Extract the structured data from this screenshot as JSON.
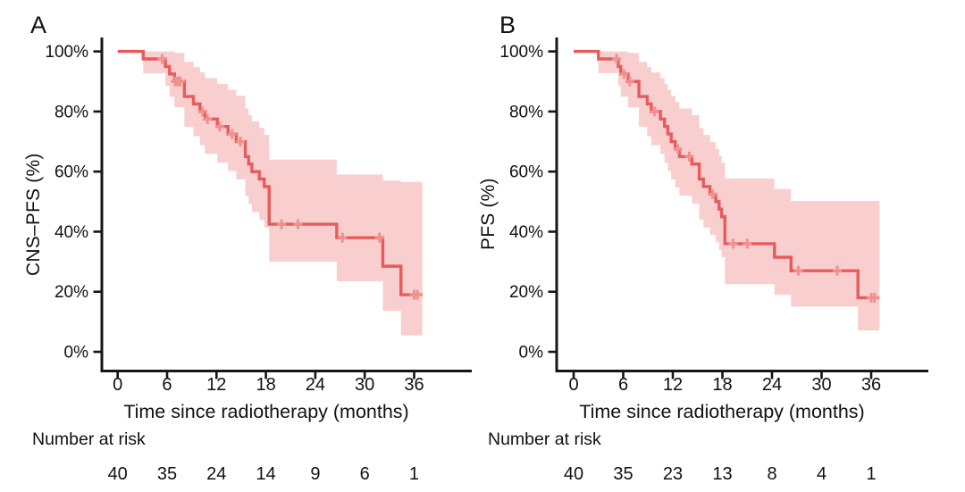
{
  "styles": {
    "background": "#ffffff",
    "text_color": "#111111",
    "axis_color": "#161616",
    "line_color": "#e65b5e",
    "band_color": "#f8cfce",
    "censor_color": "#f0918f"
  },
  "chart_data": [
    {
      "type": "line",
      "subtype": "kaplan_meier_step_with_ci_band",
      "panel_label": "A",
      "series_name": "CNS-PFS",
      "xlabel": "Time since radiotherapy (months)",
      "ylabel": "CNS–PFS (%)",
      "x_ticks": [
        "0",
        "6",
        "12",
        "18",
        "24",
        "30",
        "36"
      ],
      "x_tick_values": [
        0,
        6,
        12,
        18,
        24,
        30,
        36
      ],
      "y_ticks": [
        "0%",
        "20%",
        "40%",
        "60%",
        "80%",
        "100%"
      ],
      "y_tick_values": [
        0,
        20,
        40,
        60,
        80,
        100
      ],
      "xlim": [
        0,
        42
      ],
      "ylim": [
        0,
        100
      ],
      "grid": false,
      "legend": "none",
      "series": {
        "step_times_months": [
          0,
          3.1,
          5.8,
          6.3,
          6.9,
          8.1,
          9.2,
          10.0,
          10.6,
          12.1,
          13.4,
          14.4,
          15.5,
          15.9,
          16.3,
          17.2,
          17.8,
          18.4,
          26.6,
          32.2,
          34.4
        ],
        "survival_pct": [
          100,
          97.5,
          95,
          92.5,
          90,
          85,
          82.5,
          80,
          77.5,
          75,
          72.5,
          70,
          65,
          62.5,
          60,
          57.5,
          55,
          42.5,
          38,
          28.5,
          19
        ],
        "ci_lower_pct": [
          100,
          92.8,
          88.6,
          84.9,
          81.4,
          74.9,
          71.8,
          68.8,
          65.9,
          63.0,
          60.2,
          57.4,
          52.0,
          49.3,
          46.6,
          44.0,
          41.4,
          30.0,
          23.5,
          13.6,
          5.5
        ],
        "ci_upper_pct": [
          100,
          100,
          100,
          100,
          99.5,
          96.5,
          94.8,
          93.0,
          91.1,
          89.2,
          87.2,
          85.2,
          81.0,
          78.8,
          76.7,
          74.5,
          72.2,
          64.0,
          59.0,
          57.0,
          56.5
        ],
        "end_time_months": 37.0,
        "censor_times_months": [
          5.4,
          7.0,
          7.3,
          7.6,
          10.3,
          10.9,
          12.4,
          13.9,
          14.9,
          19.9,
          21.9,
          27.3,
          31.8,
          36.0,
          36.4
        ],
        "censor_survival_pct": [
          97.5,
          90,
          90,
          90,
          80,
          77.5,
          75,
          72.5,
          70,
          42.5,
          42.5,
          38,
          38,
          19,
          19
        ]
      },
      "number_at_risk": {
        "label": "Number at risk",
        "times": [
          0,
          6,
          12,
          18,
          24,
          30,
          36
        ],
        "counts": [
          "40",
          "35",
          "24",
          "14",
          "9",
          "6",
          "1"
        ]
      }
    },
    {
      "type": "line",
      "subtype": "kaplan_meier_step_with_ci_band",
      "panel_label": "B",
      "series_name": "PFS",
      "xlabel": "Time since radiotherapy (months)",
      "ylabel": "PFS (%)",
      "x_ticks": [
        "0",
        "6",
        "12",
        "18",
        "24",
        "30",
        "36"
      ],
      "x_tick_values": [
        0,
        6,
        12,
        18,
        24,
        30,
        36
      ],
      "y_ticks": [
        "0%",
        "20%",
        "40%",
        "60%",
        "80%",
        "100%"
      ],
      "y_tick_values": [
        0,
        20,
        40,
        60,
        80,
        100
      ],
      "xlim": [
        0,
        42
      ],
      "ylim": [
        0,
        100
      ],
      "grid": false,
      "legend": "none",
      "series": {
        "step_times_months": [
          0,
          3.0,
          5.4,
          5.7,
          6.6,
          7.9,
          8.9,
          9.4,
          10.5,
          11.0,
          11.4,
          11.8,
          12.3,
          12.8,
          14.3,
          15.2,
          15.7,
          16.5,
          17.2,
          17.6,
          17.9,
          18.3,
          24.3,
          26.3,
          34.4
        ],
        "survival_pct": [
          100,
          97.5,
          95,
          92.5,
          90,
          85,
          82.5,
          80,
          77.5,
          75,
          72.5,
          70,
          67.5,
          65,
          62.5,
          57.5,
          55,
          52.5,
          50,
          47.5,
          45,
          36,
          31.5,
          27,
          18
        ],
        "ci_lower_pct": [
          100,
          92.8,
          88.6,
          84.9,
          81.4,
          74.9,
          71.8,
          68.8,
          65.9,
          63.0,
          60.2,
          57.4,
          54.7,
          52.0,
          49.3,
          44.0,
          41.4,
          38.9,
          36.4,
          33.9,
          31.5,
          22.5,
          19.0,
          15.1,
          7.1
        ],
        "ci_upper_pct": [
          100,
          100,
          100,
          100,
          99.5,
          96.5,
          94.8,
          93.0,
          91.1,
          89.2,
          87.2,
          85.2,
          83.1,
          81.0,
          78.8,
          74.5,
          72.2,
          69.9,
          67.6,
          65.3,
          62.9,
          57.7,
          54.2,
          50.2,
          50.2
        ],
        "end_time_months": 37.0,
        "censor_times_months": [
          5.2,
          6.1,
          6.8,
          9.8,
          12.6,
          14.0,
          16.8,
          19.3,
          21.0,
          27.2,
          31.9,
          36.0,
          36.4
        ],
        "censor_survival_pct": [
          97.5,
          92.5,
          90,
          80,
          67.5,
          65,
          52.5,
          36,
          36,
          27,
          27,
          18,
          18
        ]
      },
      "number_at_risk": {
        "label": "Number at risk",
        "times": [
          0,
          6,
          12,
          18,
          24,
          30,
          36
        ],
        "counts": [
          "40",
          "35",
          "23",
          "13",
          "8",
          "4",
          "1"
        ]
      }
    }
  ]
}
